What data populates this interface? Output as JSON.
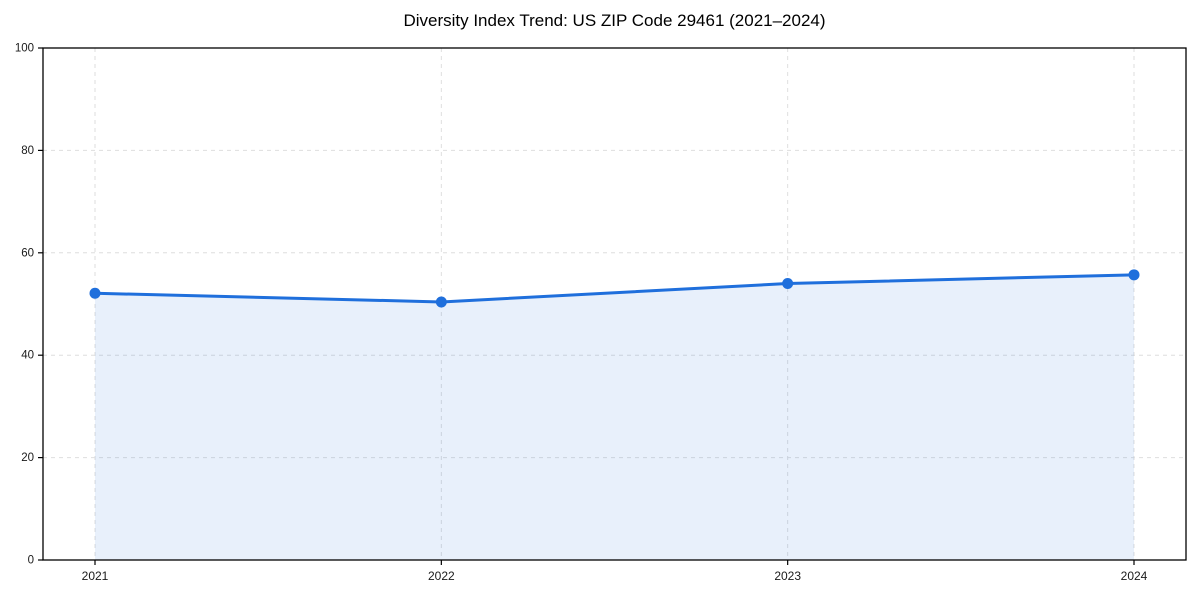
{
  "chart_data": {
    "type": "area",
    "title": "Diversity Index Trend: US ZIP Code 29461 (2021–2024)",
    "x": [
      2021,
      2022,
      2023,
      2024
    ],
    "x_tick_labels": [
      "2021",
      "2022",
      "2023",
      "2024"
    ],
    "values": [
      52.1,
      50.4,
      54.0,
      55.7
    ],
    "series_label": "Diversity Index",
    "xlabel": "",
    "ylabel": "",
    "ylim": [
      0,
      100
    ],
    "y_ticks": [
      0,
      20,
      40,
      60,
      80,
      100
    ],
    "grid": "dashed-both-axes",
    "legend": "none",
    "marker": "circle",
    "colors": {
      "line": "#1f6fdc",
      "marker": "#1f6fdc",
      "fill": "rgba(31,111,220,0.10)",
      "grid": "#dedede",
      "spine": "#000000",
      "tick_label": "#1a1a1a",
      "title": "#000000",
      "background": "#ffffff"
    }
  }
}
